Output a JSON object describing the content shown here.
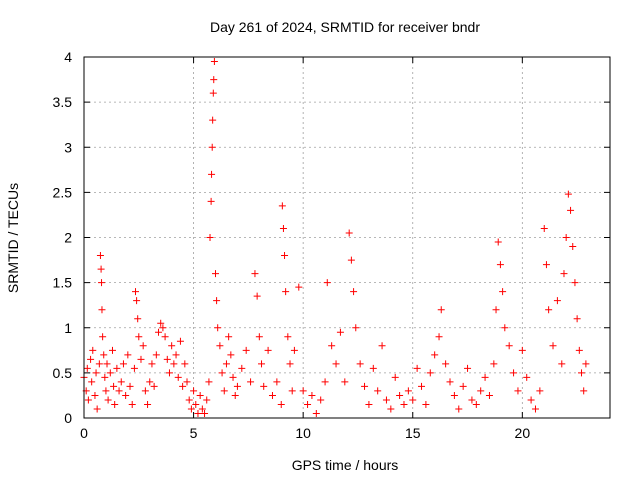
{
  "chart_data": {
    "type": "scatter",
    "title": "Day 261 of 2024, SRMTID for receiver bndr",
    "xlabel": "GPS time / hours",
    "ylabel": "SRMTID / TECUs",
    "xlim": [
      0,
      24
    ],
    "ylim": [
      0,
      4
    ],
    "xticks": [
      0,
      5,
      10,
      15,
      20
    ],
    "xtick_labels": [
      "0",
      "5",
      "10",
      "15",
      "20"
    ],
    "yticks": [
      0,
      0.5,
      1,
      1.5,
      2,
      2.5,
      3,
      3.5,
      4
    ],
    "ytick_labels": [
      "0",
      "0.5",
      "1",
      "1.5",
      "2",
      "2.5",
      "3",
      "3.5",
      "4"
    ],
    "grid": true,
    "marker": "+",
    "color": "#ff0000",
    "series": [
      {
        "name": "SRMTID",
        "points": [
          [
            0.0,
            0.45
          ],
          [
            0.1,
            0.3
          ],
          [
            0.15,
            0.55
          ],
          [
            0.2,
            0.2
          ],
          [
            0.3,
            0.65
          ],
          [
            0.35,
            0.4
          ],
          [
            0.4,
            0.75
          ],
          [
            0.5,
            0.25
          ],
          [
            0.55,
            0.5
          ],
          [
            0.6,
            0.1
          ],
          [
            0.7,
            0.6
          ],
          [
            0.75,
            1.8
          ],
          [
            0.78,
            1.65
          ],
          [
            0.8,
            1.5
          ],
          [
            0.82,
            1.2
          ],
          [
            0.85,
            0.9
          ],
          [
            0.9,
            0.7
          ],
          [
            0.95,
            0.45
          ],
          [
            1.0,
            0.3
          ],
          [
            1.05,
            0.6
          ],
          [
            1.1,
            0.2
          ],
          [
            1.2,
            0.5
          ],
          [
            1.3,
            0.75
          ],
          [
            1.35,
            0.35
          ],
          [
            1.4,
            0.15
          ],
          [
            1.5,
            0.55
          ],
          [
            1.6,
            0.3
          ],
          [
            1.7,
            0.4
          ],
          [
            1.8,
            0.6
          ],
          [
            1.9,
            0.25
          ],
          [
            2.0,
            0.7
          ],
          [
            2.1,
            0.35
          ],
          [
            2.2,
            0.15
          ],
          [
            2.3,
            0.55
          ],
          [
            2.35,
            1.4
          ],
          [
            2.4,
            1.3
          ],
          [
            2.45,
            1.1
          ],
          [
            2.5,
            0.9
          ],
          [
            2.6,
            0.65
          ],
          [
            2.7,
            0.8
          ],
          [
            2.8,
            0.3
          ],
          [
            2.9,
            0.15
          ],
          [
            3.0,
            0.4
          ],
          [
            3.1,
            0.6
          ],
          [
            3.2,
            0.35
          ],
          [
            3.3,
            0.7
          ],
          [
            3.4,
            0.95
          ],
          [
            3.5,
            1.05
          ],
          [
            3.6,
            1.0
          ],
          [
            3.7,
            0.9
          ],
          [
            3.8,
            0.65
          ],
          [
            3.9,
            0.5
          ],
          [
            4.0,
            0.8
          ],
          [
            4.1,
            0.6
          ],
          [
            4.2,
            0.7
          ],
          [
            4.3,
            0.45
          ],
          [
            4.4,
            0.85
          ],
          [
            4.5,
            0.35
          ],
          [
            4.6,
            0.6
          ],
          [
            4.7,
            0.4
          ],
          [
            4.8,
            0.2
          ],
          [
            4.9,
            0.1
          ],
          [
            5.0,
            0.3
          ],
          [
            5.1,
            0.15
          ],
          [
            5.2,
            0.05
          ],
          [
            5.3,
            0.25
          ],
          [
            5.4,
            0.1
          ],
          [
            5.5,
            0.05
          ],
          [
            5.6,
            0.2
          ],
          [
            5.7,
            0.4
          ],
          [
            5.75,
            2.0
          ],
          [
            5.8,
            2.4
          ],
          [
            5.82,
            2.7
          ],
          [
            5.85,
            3.0
          ],
          [
            5.87,
            3.3
          ],
          [
            5.9,
            3.6
          ],
          [
            5.92,
            3.75
          ],
          [
            5.95,
            3.95
          ],
          [
            6.0,
            1.6
          ],
          [
            6.05,
            1.3
          ],
          [
            6.1,
            1.0
          ],
          [
            6.2,
            0.8
          ],
          [
            6.3,
            0.5
          ],
          [
            6.4,
            0.3
          ],
          [
            6.5,
            0.6
          ],
          [
            6.6,
            0.9
          ],
          [
            6.7,
            0.7
          ],
          [
            6.8,
            0.45
          ],
          [
            6.9,
            0.25
          ],
          [
            7.0,
            0.35
          ],
          [
            7.2,
            0.55
          ],
          [
            7.4,
            0.75
          ],
          [
            7.6,
            0.4
          ],
          [
            7.8,
            1.6
          ],
          [
            7.9,
            1.35
          ],
          [
            8.0,
            0.9
          ],
          [
            8.1,
            0.6
          ],
          [
            8.2,
            0.35
          ],
          [
            8.4,
            0.75
          ],
          [
            8.6,
            0.25
          ],
          [
            8.8,
            0.4
          ],
          [
            9.0,
            0.15
          ],
          [
            9.05,
            2.35
          ],
          [
            9.1,
            2.1
          ],
          [
            9.15,
            1.8
          ],
          [
            9.2,
            1.4
          ],
          [
            9.3,
            0.9
          ],
          [
            9.4,
            0.6
          ],
          [
            9.5,
            0.3
          ],
          [
            9.6,
            0.75
          ],
          [
            9.8,
            1.45
          ],
          [
            10.0,
            0.3
          ],
          [
            10.2,
            0.15
          ],
          [
            10.4,
            0.25
          ],
          [
            10.6,
            0.05
          ],
          [
            10.8,
            0.2
          ],
          [
            11.0,
            0.4
          ],
          [
            11.1,
            1.5
          ],
          [
            11.3,
            0.8
          ],
          [
            11.5,
            0.6
          ],
          [
            11.7,
            0.95
          ],
          [
            11.9,
            0.4
          ],
          [
            12.1,
            2.05
          ],
          [
            12.2,
            1.75
          ],
          [
            12.3,
            1.4
          ],
          [
            12.4,
            1.0
          ],
          [
            12.6,
            0.6
          ],
          [
            12.8,
            0.35
          ],
          [
            13.0,
            0.15
          ],
          [
            13.2,
            0.55
          ],
          [
            13.4,
            0.3
          ],
          [
            13.6,
            0.8
          ],
          [
            13.8,
            0.2
          ],
          [
            14.0,
            0.1
          ],
          [
            14.2,
            0.45
          ],
          [
            14.4,
            0.25
          ],
          [
            14.6,
            0.15
          ],
          [
            14.8,
            0.3
          ],
          [
            15.0,
            0.2
          ],
          [
            15.2,
            0.55
          ],
          [
            15.4,
            0.35
          ],
          [
            15.6,
            0.15
          ],
          [
            15.8,
            0.5
          ],
          [
            16.0,
            0.7
          ],
          [
            16.2,
            0.9
          ],
          [
            16.3,
            1.2
          ],
          [
            16.5,
            0.6
          ],
          [
            16.7,
            0.4
          ],
          [
            16.9,
            0.25
          ],
          [
            17.1,
            0.1
          ],
          [
            17.3,
            0.35
          ],
          [
            17.5,
            0.55
          ],
          [
            17.7,
            0.2
          ],
          [
            17.9,
            0.15
          ],
          [
            18.1,
            0.3
          ],
          [
            18.3,
            0.45
          ],
          [
            18.5,
            0.25
          ],
          [
            18.7,
            0.6
          ],
          [
            18.8,
            1.2
          ],
          [
            18.9,
            1.95
          ],
          [
            19.0,
            1.7
          ],
          [
            19.1,
            1.4
          ],
          [
            19.2,
            1.0
          ],
          [
            19.4,
            0.8
          ],
          [
            19.6,
            0.5
          ],
          [
            19.8,
            0.3
          ],
          [
            20.0,
            0.75
          ],
          [
            20.2,
            0.45
          ],
          [
            20.4,
            0.2
          ],
          [
            20.6,
            0.1
          ],
          [
            20.8,
            0.3
          ],
          [
            21.0,
            2.1
          ],
          [
            21.1,
            1.7
          ],
          [
            21.2,
            1.2
          ],
          [
            21.4,
            0.8
          ],
          [
            21.6,
            1.3
          ],
          [
            21.8,
            0.6
          ],
          [
            21.9,
            1.6
          ],
          [
            22.0,
            2.0
          ],
          [
            22.1,
            2.48
          ],
          [
            22.2,
            2.3
          ],
          [
            22.3,
            1.9
          ],
          [
            22.4,
            1.5
          ],
          [
            22.5,
            1.1
          ],
          [
            22.6,
            0.75
          ],
          [
            22.7,
            0.5
          ],
          [
            22.8,
            0.3
          ],
          [
            22.9,
            0.6
          ]
        ]
      }
    ]
  }
}
